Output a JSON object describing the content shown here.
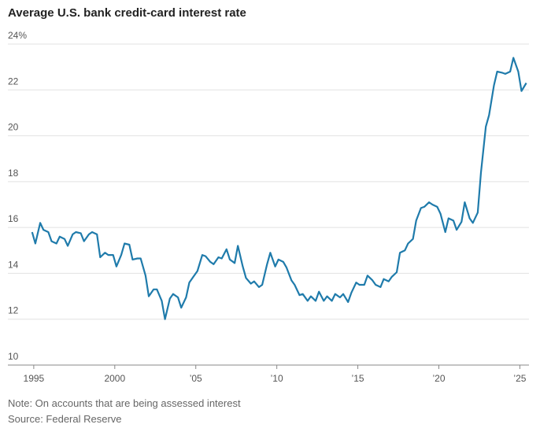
{
  "chart_data": {
    "type": "line",
    "title": "Average U.S. bank credit-card interest rate",
    "notes": [
      "Note: On accounts that are being assessed interest",
      "Source: Federal Reserve"
    ],
    "xlim": [
      1993.5,
      2026
    ],
    "ylim": [
      10,
      24
    ],
    "xticks": [
      {
        "value": 1995,
        "label": "1995"
      },
      {
        "value": 2000,
        "label": "2000"
      },
      {
        "value": 2005,
        "label": "’05"
      },
      {
        "value": 2010,
        "label": "’10"
      },
      {
        "value": 2015,
        "label": "’15"
      },
      {
        "value": 2020,
        "label": "’20"
      },
      {
        "value": 2025,
        "label": "’25"
      }
    ],
    "yticks": [
      10,
      12,
      14,
      16,
      18,
      20,
      22,
      {
        "value": 24,
        "label": "24%"
      }
    ],
    "grid": true,
    "x": [
      1994.9,
      1995.1,
      1995.4,
      1995.6,
      1995.9,
      1996.1,
      1996.4,
      1996.6,
      1996.9,
      1997.1,
      1997.4,
      1997.6,
      1997.9,
      1998.1,
      1998.4,
      1998.6,
      1998.9,
      1999.1,
      1999.4,
      1999.6,
      1999.9,
      2000.1,
      2000.4,
      2000.6,
      2000.9,
      2001.1,
      2001.4,
      2001.6,
      2001.9,
      2002.1,
      2002.4,
      2002.6,
      2002.9,
      2003.1,
      2003.4,
      2003.6,
      2003.9,
      2004.1,
      2004.4,
      2004.6,
      2004.9,
      2005.1,
      2005.4,
      2005.6,
      2005.9,
      2006.1,
      2006.4,
      2006.6,
      2006.9,
      2007.1,
      2007.4,
      2007.6,
      2007.9,
      2008.1,
      2008.4,
      2008.6,
      2008.9,
      2009.1,
      2009.4,
      2009.6,
      2009.9,
      2010.1,
      2010.4,
      2010.6,
      2010.9,
      2011.1,
      2011.4,
      2011.6,
      2011.9,
      2012.1,
      2012.4,
      2012.6,
      2012.9,
      2013.1,
      2013.4,
      2013.6,
      2013.9,
      2014.1,
      2014.4,
      2014.6,
      2014.9,
      2015.1,
      2015.4,
      2015.6,
      2015.9,
      2016.1,
      2016.4,
      2016.6,
      2016.9,
      2017.1,
      2017.4,
      2017.6,
      2017.9,
      2018.1,
      2018.4,
      2018.6,
      2018.9,
      2019.1,
      2019.4,
      2019.6,
      2019.9,
      2020.1,
      2020.4,
      2020.6,
      2020.9,
      2021.1,
      2021.4,
      2021.6,
      2021.9,
      2022.1,
      2022.4,
      2022.6,
      2022.9,
      2023.1,
      2023.4,
      2023.6,
      2023.9,
      2024.1,
      2024.4,
      2024.6,
      2024.9,
      2025.1,
      2025.4
    ],
    "series": [
      {
        "name": "Average U.S. bank credit-card interest rate",
        "color": "#1f7bab",
        "values": [
          15.8,
          15.3,
          16.2,
          15.9,
          15.8,
          15.4,
          15.3,
          15.6,
          15.5,
          15.2,
          15.7,
          15.8,
          15.75,
          15.4,
          15.7,
          15.8,
          15.7,
          14.7,
          14.9,
          14.8,
          14.8,
          14.3,
          14.8,
          15.3,
          15.25,
          14.6,
          14.65,
          14.65,
          13.9,
          13.0,
          13.3,
          13.3,
          12.8,
          12.0,
          12.9,
          13.1,
          12.95,
          12.5,
          12.95,
          13.6,
          13.9,
          14.1,
          14.8,
          14.75,
          14.5,
          14.4,
          14.7,
          14.65,
          15.05,
          14.6,
          14.45,
          15.2,
          14.3,
          13.8,
          13.55,
          13.65,
          13.4,
          13.5,
          14.4,
          14.9,
          14.3,
          14.6,
          14.5,
          14.25,
          13.7,
          13.5,
          13.05,
          13.1,
          12.8,
          13.0,
          12.8,
          13.2,
          12.8,
          13.0,
          12.8,
          13.1,
          12.95,
          13.1,
          12.75,
          13.15,
          13.6,
          13.5,
          13.5,
          13.9,
          13.7,
          13.5,
          13.4,
          13.75,
          13.65,
          13.85,
          14.05,
          14.9,
          15.0,
          15.3,
          15.5,
          16.3,
          16.85,
          16.9,
          17.1,
          17.0,
          16.9,
          16.6,
          15.8,
          16.4,
          16.3,
          15.9,
          16.25,
          17.1,
          16.4,
          16.2,
          16.65,
          18.4,
          20.4,
          20.9,
          22.2,
          22.8,
          22.75,
          22.7,
          22.8,
          23.4,
          22.8,
          21.95,
          22.3
        ]
      }
    ]
  }
}
